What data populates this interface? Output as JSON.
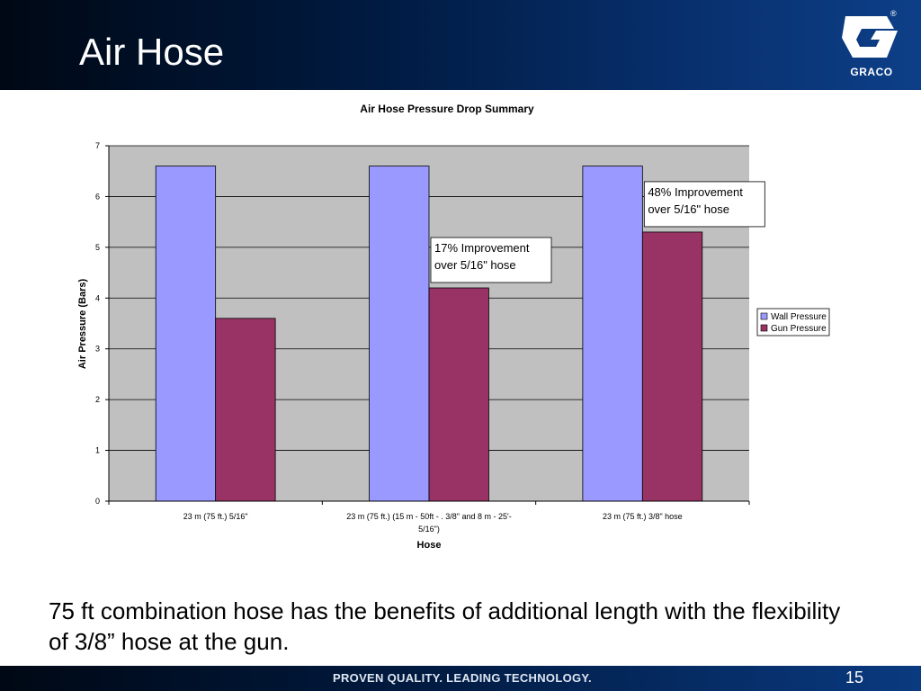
{
  "slide": {
    "title": "Air Hose",
    "logo_text": "GRACO",
    "logo_mark": "®",
    "caption": "75 ft combination hose has the benefits of additional length with the flexibility of 3/8” hose at the gun.",
    "footer_tagline": "PROVEN QUALITY. LEADING TECHNOLOGY.",
    "page_number": "15"
  },
  "chart_data": {
    "type": "bar",
    "title": "Air Hose Pressure Drop Summary",
    "xlabel": "Hose",
    "ylabel": "Air Pressure (Bars)",
    "ylim": [
      0,
      7
    ],
    "yticks": [
      "0",
      "1",
      "2",
      "3",
      "4",
      "5",
      "6",
      "7"
    ],
    "categories": [
      [
        "23 m (75 ft.)  5/16\""
      ],
      [
        "23 m (75 ft.)  (15 m - 50ft - . 3/8\" and 8 m - 25'-",
        "5/16\")"
      ],
      [
        "23 m (75 ft.) 3/8\" hose"
      ]
    ],
    "series": [
      {
        "name": "Wall Pressure",
        "color": "#9999ff",
        "values": [
          6.6,
          6.6,
          6.6
        ]
      },
      {
        "name": "Gun Pressure",
        "color": "#993366",
        "values": [
          3.6,
          4.2,
          5.3
        ]
      }
    ],
    "annotations": [
      {
        "category": 1,
        "lines": [
          "17% Improvement",
          "over 5/16\" hose"
        ]
      },
      {
        "category": 2,
        "lines": [
          "48% Improvement",
          "over 5/16\" hose"
        ]
      }
    ],
    "grid": true,
    "plot_background": "#c0c0c0",
    "legend_position": "right"
  }
}
